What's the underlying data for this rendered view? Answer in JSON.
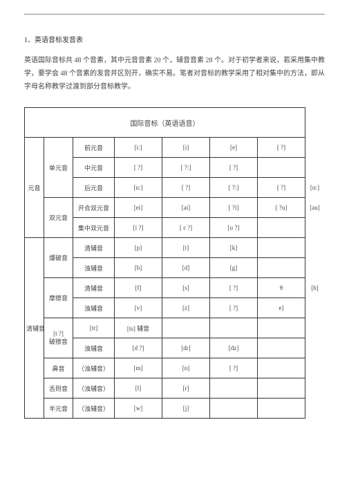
{
  "header_mark": "·",
  "section_title": "1、英语音标发音表",
  "intro": "英语国际音标共 48 个音素，其中元音音素 20 个，辅音音素 28 个。对于初学者来说，若采用集中教学，要学会 48 个音素的发音并区别开，确实不易。笔者对音标的教学采用了相对集中的方法，即从字母名称教学过渡到部分音标教学。",
  "table_title": "国际音标（英语语音）",
  "rows": {
    "yuan": "元音",
    "danyuan": "单元音",
    "shuangyuan": "双元音",
    "qingfu": "清辅音",
    "qianyuan": "前元音",
    "zhongyuan": "中元音",
    "houyuan": "后元音",
    "kaihe": "开合双元音",
    "jizhong": "集中双元音",
    "qingfu2": "清辅音",
    "zhuofu": "浊辅音",
    "moca": "摩擦音",
    "baopo": "爆破音",
    "poca": "破擦音",
    "biyin": "鼻音",
    "shewei": "舌则音",
    "banyuan": "半元音"
  },
  "cells": {
    "r1c1": "[i:]",
    "r1c2": "[i]",
    "r1c3": "[e]",
    "r1c4": "[ ?]",
    "r2c1": "[ ?]",
    "r2c2": "[ ?:]",
    "r2c3": "[ ?]",
    "r2c4": "",
    "r3c1": "[u:]",
    "r3c2": "[ ?]",
    "r3c3": "[ ?:]",
    "r3c4": "[ ?]",
    "r3ext": "[ɑ:]",
    "r4c1": "[ei]",
    "r4c2": "[ai]",
    "r4c3": "[ ?i]",
    "r4c4": "[ ?u]",
    "r4ext": "[au]",
    "r5c1": "[i ?]",
    "r5c2": "[ ε ?]",
    "r5c3": "[u ?]",
    "r5c4": "",
    "r6c1": "[p]",
    "r6c2": "[t]",
    "r6c3": "[k]",
    "r6c4": "",
    "r7c1": "[b]",
    "r7c2": "[d]",
    "r7c3": "[g]",
    "r8c1": "[f]",
    "r8c2": "[s]",
    "r8c3": "[ ?]",
    "r8c4": "θ",
    "r8ext": "[h]",
    "r9c1": "[v]",
    "r9c2": "[z]",
    "r9c3": "[ ?]",
    "r9c4": "e]",
    "r10lab": "[t ?]",
    "r10c1": "[tr]",
    "r10c2": "[ts] 辅音",
    "r11c1": "[d ?]",
    "r11c2": "[dr]",
    "r11c3": "[dz]",
    "r12c1": "[m]",
    "r12c2": "[n]",
    "r12c3": "[ ?]",
    "r13c1": "[l]",
    "r13c2": "[r]",
    "r14c1": "[w]",
    "r14c2": "[j]"
  },
  "paren": {
    "zhuofu": "（浊辅音）"
  }
}
